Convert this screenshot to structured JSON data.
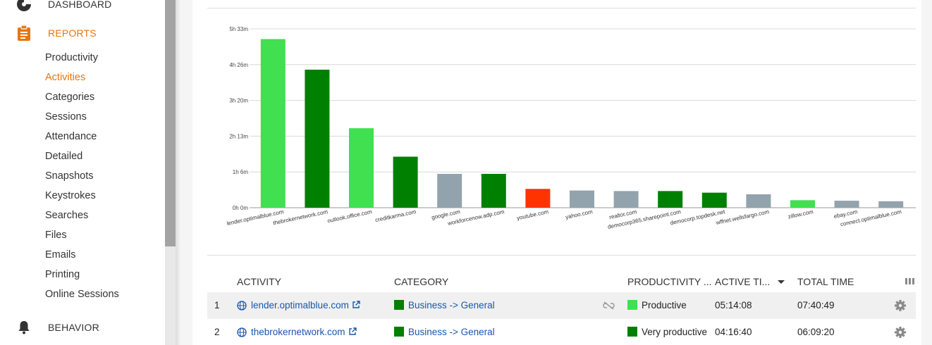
{
  "sidebar": {
    "sections": [
      {
        "label": "DASHBOARD",
        "icon": "dashboard-icon"
      },
      {
        "label": "REPORTS",
        "icon": "clipboard-icon",
        "active": true
      },
      {
        "label": "BEHAVIOR",
        "icon": "bell-icon"
      }
    ],
    "report_items": [
      {
        "label": "Productivity"
      },
      {
        "label": "Activities",
        "active": true
      },
      {
        "label": "Categories"
      },
      {
        "label": "Sessions"
      },
      {
        "label": "Attendance"
      },
      {
        "label": "Detailed"
      },
      {
        "label": "Snapshots"
      },
      {
        "label": "Keystrokes"
      },
      {
        "label": "Searches"
      },
      {
        "label": "Files"
      },
      {
        "label": "Emails"
      },
      {
        "label": "Printing"
      },
      {
        "label": "Online Sessions"
      }
    ]
  },
  "colors": {
    "accent": "#e8750f",
    "productive": "#40e050",
    "very_productive": "#008000",
    "neutral": "#93a3ad",
    "unproductive": "#ff3300",
    "link": "#1a56a8"
  },
  "chart_data": {
    "type": "bar",
    "title": "",
    "xlabel": "",
    "ylabel": "",
    "y_tick_labels": [
      "0h 0m",
      "1h 6m",
      "2h 13m",
      "3h 20m",
      "4h 26m",
      "5h 33m"
    ],
    "ylim_minutes": [
      0,
      333
    ],
    "grid": true,
    "categories": [
      "lender.optimalblue.com",
      "thebrokernetwork.com",
      "outlook.office.com",
      "creditkarma.com",
      "google.com",
      "workforcenow.adp.com",
      "youtube.com",
      "yahoo.com",
      "realtor.com",
      "democorp365.sharepoint.com",
      "democorp.topdesk.net",
      "wffnet.wellsfargo.com",
      "zillow.com",
      "ebay.com",
      "connect.optimalblue.com"
    ],
    "values_minutes": [
      314,
      257,
      148,
      95,
      63,
      63,
      35,
      32,
      31,
      31,
      28,
      25,
      14,
      13,
      12
    ],
    "bar_colors": [
      "#40e050",
      "#008000",
      "#40e050",
      "#008000",
      "#93a3ad",
      "#008000",
      "#ff3300",
      "#93a3ad",
      "#93a3ad",
      "#008000",
      "#008000",
      "#93a3ad",
      "#40e050",
      "#93a3ad",
      "#93a3ad"
    ]
  },
  "table": {
    "columns": {
      "activity": "ACTIVITY",
      "category": "CATEGORY",
      "productivity": "PRODUCTIVITY ...",
      "active_time": "ACTIVE TI...",
      "total_time": "TOTAL TIME"
    },
    "rows": [
      {
        "index": "1",
        "activity": "lender.optimalblue.com",
        "category": "Business -> General",
        "category_color": "#008000",
        "productivity": "Productive",
        "productivity_color": "#40e050",
        "active_time": "05:14:08",
        "total_time": "07:40:49"
      },
      {
        "index": "2",
        "activity": "thebrokernetwork.com",
        "category": "Business -> General",
        "category_color": "#008000",
        "productivity": "Very productive",
        "productivity_color": "#008000",
        "active_time": "04:16:40",
        "total_time": "06:09:20"
      }
    ]
  }
}
